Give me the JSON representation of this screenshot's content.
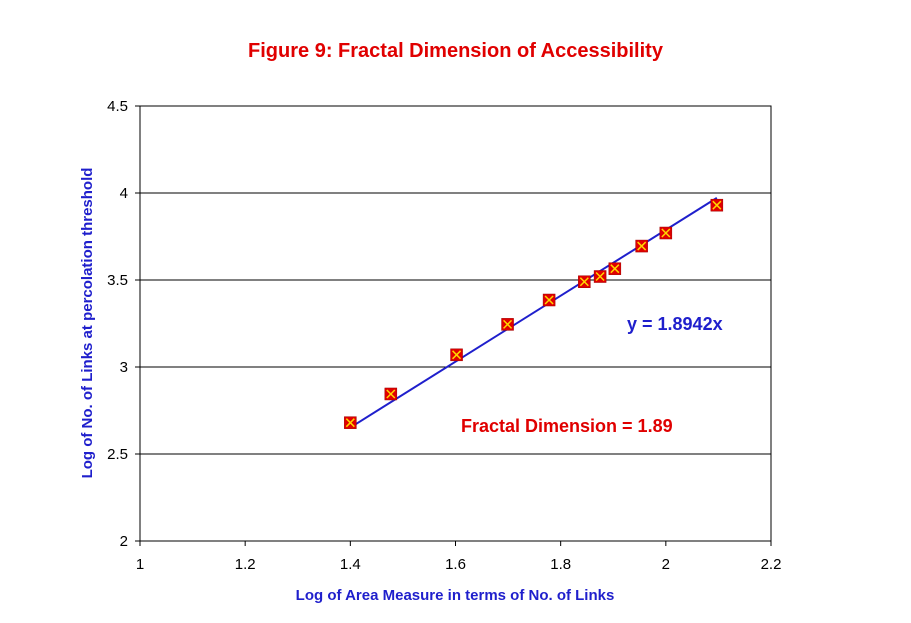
{
  "chart_data": {
    "type": "scatter",
    "title": "Figure 9: Fractal Dimension of Accessibility",
    "xlabel": "Log of Area Measure in terms of No. of Links",
    "ylabel": "Log of No. of Links at percolation threshold",
    "xlim": [
      1,
      2.2
    ],
    "ylim": [
      2,
      4.5
    ],
    "x_ticks": [
      "1",
      "1.2",
      "1.4",
      "1.6",
      "1.8",
      "2",
      "2.2"
    ],
    "y_ticks": [
      "2",
      "2.5",
      "3",
      "3.5",
      "4",
      "4.5"
    ],
    "grid": "horizontal",
    "series": [
      {
        "x": [
          1.4,
          1.477,
          1.602,
          1.699,
          1.778,
          1.845,
          1.875,
          1.903,
          1.954,
          2.0,
          2.097
        ],
        "y": [
          2.68,
          2.845,
          3.07,
          3.245,
          3.385,
          3.49,
          3.52,
          3.565,
          3.695,
          3.77,
          3.93
        ],
        "marker_color": "#e00000",
        "cross_color": "#ffd700"
      }
    ],
    "trendline": {
      "slope": 1.8942,
      "x_range": [
        1.4,
        2.097
      ],
      "color": "#1f1fcc"
    },
    "annotations": [
      {
        "id": "equation",
        "text": "y = 1.8942x"
      },
      {
        "id": "fractal_dimension",
        "text": "Fractal Dimension = 1.89"
      }
    ]
  }
}
